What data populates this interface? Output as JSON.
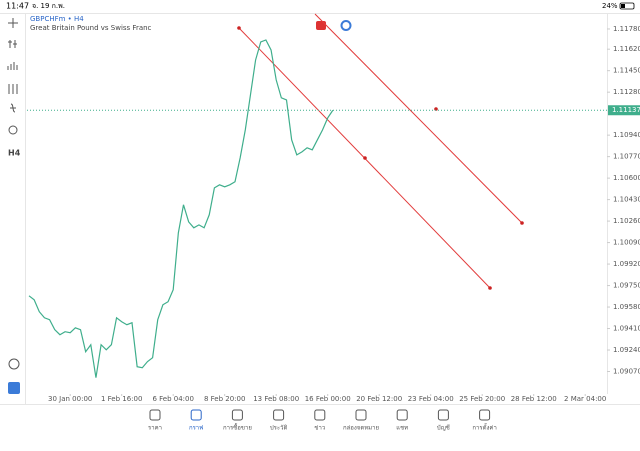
{
  "status_bar": {
    "time": "11:47",
    "date": "จ. 19 ก.พ.",
    "battery": "24%"
  },
  "symbol": {
    "name": "GBPCHFm • H4",
    "description": "Great Britain Pound vs Swiss Franc"
  },
  "toolbar": {
    "timeframe": "H4"
  },
  "chart_data": {
    "type": "line",
    "color": "#3fae8c",
    "categories": [
      null,
      null,
      null,
      null,
      null,
      null,
      null,
      null,
      "30 Jan 00:00",
      null,
      null,
      null,
      null,
      null,
      null,
      null,
      null,
      null,
      "1 Feb 16:00",
      null,
      null,
      null,
      null,
      null,
      null,
      null,
      null,
      null,
      "6 Feb 04:00",
      null,
      null,
      null,
      null,
      null,
      null,
      null,
      null,
      null,
      "8 Feb 20:00",
      null,
      null,
      null,
      null,
      null,
      null,
      null,
      null,
      null,
      "13 Feb 08:00",
      null,
      null,
      null,
      null,
      null,
      null,
      null,
      null,
      null,
      "16 Feb 00:00",
      null,
      null,
      null,
      null,
      null,
      null,
      null,
      null,
      null,
      "20 Feb 12:00",
      null,
      null,
      null,
      null,
      null,
      null,
      null,
      null,
      null,
      "23 Feb 04:00",
      null,
      null,
      null,
      null,
      null,
      null,
      null,
      null,
      null,
      "25 Feb 20:00",
      null,
      null,
      null,
      null,
      null,
      null,
      null,
      null,
      null,
      "28 Feb 12:00",
      null,
      null,
      null,
      null,
      null,
      null,
      null,
      null,
      null,
      "2 Mar 04:00",
      null,
      null,
      null,
      null
    ],
    "values": [
      1.09669,
      1.09638,
      1.09543,
      1.09495,
      1.0948,
      1.09401,
      1.09361,
      1.09385,
      1.09377,
      1.09416,
      1.09401,
      1.09227,
      1.09282,
      1.09021,
      1.09282,
      1.09242,
      1.09282,
      1.09495,
      1.09464,
      1.0944,
      1.09456,
      1.09108,
      1.091,
      1.09148,
      1.09179,
      1.0948,
      1.09598,
      1.09622,
      1.09717,
      1.10167,
      1.10389,
      1.10254,
      1.10207,
      1.1023,
      1.10207,
      1.1031,
      1.10523,
      1.10547,
      1.10531,
      1.10547,
      1.10571,
      1.1076,
      1.10982,
      1.11258,
      1.11535,
      1.11677,
      1.11693,
      1.11614,
      1.11377,
      1.11235,
      1.11219,
      1.10903,
      1.10784,
      1.10808,
      1.1084,
      1.10824,
      1.10903,
      1.10982,
      1.11076,
      1.11137,
      null,
      null,
      null,
      null,
      null,
      null,
      null,
      null,
      null,
      null,
      null,
      null,
      null,
      null,
      null,
      null,
      null,
      null,
      null,
      null,
      null,
      null,
      null,
      null,
      null,
      null,
      null,
      null,
      null,
      null,
      null,
      null,
      null,
      null,
      null,
      null,
      null,
      null,
      null,
      null,
      null,
      null,
      null,
      null,
      null,
      null,
      null,
      null,
      null,
      null,
      null,
      null,
      null
    ],
    "current_price": 1.11137,
    "ylim": [
      1.089,
      1.119
    ],
    "yticks": [
      {
        "value": 1.1178,
        "label": "1.11780"
      },
      {
        "value": 1.1162,
        "label": "1.11620"
      },
      {
        "value": 1.1145,
        "label": "1.11450"
      },
      {
        "value": 1.1128,
        "label": "1.11280"
      },
      {
        "value": 1.1094,
        "label": "1.10940"
      },
      {
        "value": 1.1077,
        "label": "1.10770"
      },
      {
        "value": 1.106,
        "label": "1.10600"
      },
      {
        "value": 1.1043,
        "label": "1.10430"
      },
      {
        "value": 1.1026,
        "label": "1.10260"
      },
      {
        "value": 1.1009,
        "label": "1.10090"
      },
      {
        "value": 1.0992,
        "label": "1.09920"
      },
      {
        "value": 1.0975,
        "label": "1.09750"
      },
      {
        "value": 1.0958,
        "label": "1.09580"
      },
      {
        "value": 1.0941,
        "label": "1.09410"
      },
      {
        "value": 1.0924,
        "label": "1.09240"
      },
      {
        "value": 1.0907,
        "label": "1.09070"
      }
    ]
  },
  "nav": {
    "items": [
      "ราคา",
      "กราฟ",
      "การซื้อขาย",
      "ประวัติ",
      "ข่าว",
      "กล่องจดหมาย",
      "แชท",
      "บัญชี",
      "การตั้งค่า"
    ]
  }
}
